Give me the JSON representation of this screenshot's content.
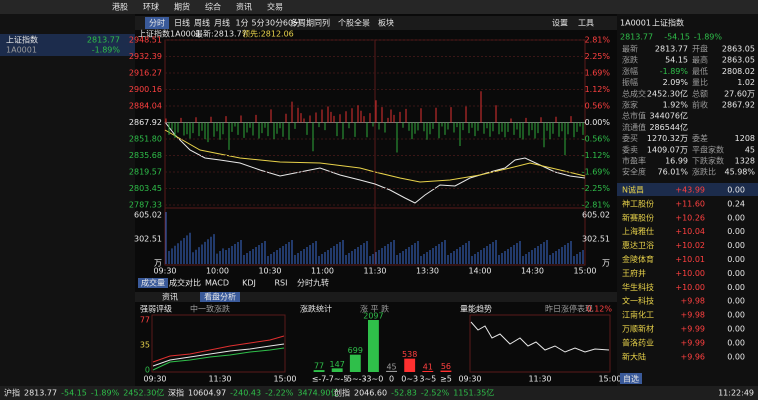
{
  "menu": [
    "港股",
    "环球",
    "期货",
    "综合",
    "资讯",
    "交易"
  ],
  "left": {
    "name": "上证指数",
    "price": "2813.77",
    "code": "1A0001",
    "pct": "-1.89%"
  },
  "toolbar": [
    "分时",
    "日线",
    "周线",
    "月线",
    "1分",
    "5分",
    "30分",
    "60分",
    "多周期同列",
    "个股全景",
    "板块"
  ],
  "toolbar_right": [
    "设置",
    "工具"
  ],
  "chart": {
    "title": "上证指数",
    "code": "1A0001",
    "latest": "最新:2813.77",
    "lead": "领先:2812.06",
    "price_ticks": [
      "2948.51",
      "2932.39",
      "2916.27",
      "2900.16",
      "2884.04",
      "2867.92",
      "2851.80",
      "2835.68",
      "2819.57",
      "2803.45",
      "2787.33"
    ],
    "pct_ticks": [
      "2.81%",
      "2.25%",
      "1.69%",
      "1.12%",
      "0.56%",
      "0.00%",
      "-0.56%",
      "-1.12%",
      "-1.69%",
      "-2.25%",
      "-2.81%"
    ],
    "vol_ticks": [
      "605.02",
      "302.51",
      "万"
    ],
    "time_ticks": [
      "09:30",
      "10:00",
      "10:30",
      "11:00",
      "11:30",
      "13:30",
      "14:00",
      "14:30",
      "15:00"
    ],
    "tabs": [
      "成交量",
      "成交对比",
      "MACD",
      "KDJ",
      "RSI",
      "分时九转"
    ]
  },
  "bottom": {
    "tabs": [
      "资讯",
      "看盘分析"
    ],
    "strength": {
      "title": "强弱评级",
      "legend": "中一致涨跌",
      "y": [
        "77",
        "35",
        "0"
      ],
      "x": [
        "09:30",
        "11:30",
        "15:00"
      ]
    },
    "stats": {
      "title": "涨跌统计",
      "legend": "涨 平 跌",
      "bins": [
        "≤-7",
        "-7~-5",
        "-5~-3",
        "-3~0",
        "0",
        "0~3",
        "3~5",
        "≥5"
      ],
      "values": [
        77,
        147,
        699,
        2097,
        45,
        538,
        41,
        56
      ]
    },
    "trend": {
      "title": "量能趋势",
      "legend": "昨日涨停表现",
      "value": "0.12%",
      "x": [
        "09:30",
        "11:30",
        "15:00"
      ]
    }
  },
  "quote": {
    "code": "1A0001",
    "name": "上证指数",
    "price": "2813.77",
    "change": "-54.15",
    "pct": "-1.89%",
    "rows": [
      [
        "最新",
        "2813.77",
        "开盘",
        "2863.05"
      ],
      [
        "涨跌",
        "54.15",
        "最高",
        "2863.05"
      ],
      [
        "涨幅",
        "-1.89%",
        "最低",
        "2808.02"
      ],
      [
        "振幅",
        "2.09%",
        "量比",
        "1.02"
      ],
      [
        "总成交",
        "2452.30亿",
        "总额",
        "27.60万"
      ],
      [
        "涨家",
        "1.92%",
        "前收",
        "2867.92"
      ],
      [
        "总市值",
        "344076亿",
        "",
        ""
      ],
      [
        "流通值",
        "286544亿",
        "",
        ""
      ],
      [
        "委买",
        "1270.32万",
        "委差",
        "1208"
      ],
      [
        "委卖",
        "1409.07万",
        "平盘家数",
        "45"
      ],
      [
        "市盈率",
        "16.99",
        "下跌家数",
        "1328"
      ],
      [
        "安全度",
        "76.01%",
        "涨跌比",
        "45.98%"
      ]
    ]
  },
  "stocks": [
    [
      "N诚昌",
      "+43.99",
      "0.00"
    ],
    [
      "神工股份",
      "+11.60",
      "0.24"
    ],
    [
      "新赛股份",
      "+10.26",
      "0.00"
    ],
    [
      "上海雅仕",
      "+10.04",
      "0.00"
    ],
    [
      "惠达卫浴",
      "+10.02",
      "0.00"
    ],
    [
      "金陵体育",
      "+10.01",
      "0.00"
    ],
    [
      "王府井",
      "+10.00",
      "0.00"
    ],
    [
      "华生科技",
      "+10.00",
      "0.00"
    ],
    [
      "文一科技",
      "+9.98",
      "0.00"
    ],
    [
      "江南化工",
      "+9.98",
      "0.00"
    ],
    [
      "万顺新材",
      "+9.99",
      "0.00"
    ],
    [
      "普洛药业",
      "+9.99",
      "0.00"
    ],
    [
      "新大陆",
      "+9.96",
      "0.00"
    ]
  ],
  "stock_tab": "自选",
  "status": [
    [
      "沪指",
      "2813.77",
      "-54.15",
      "-1.89%",
      "2452.30亿"
    ],
    [
      "深指",
      "10604.97",
      "-240.43",
      "-2.22%",
      "3474.90亿"
    ],
    [
      "创指",
      "2046.60",
      "-52.83",
      "-2.52%",
      "1151.35亿"
    ]
  ],
  "time": "11:22:49"
}
